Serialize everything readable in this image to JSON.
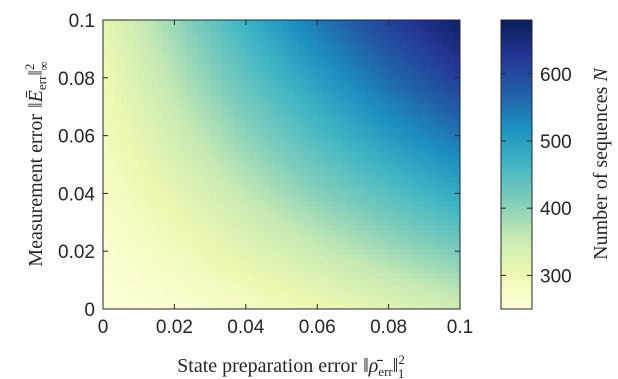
{
  "chart_data": {
    "type": "heatmap",
    "title": "",
    "xlabel": "State preparation error",
    "xlabel_math": {
      "symbol": "ρ̄",
      "subscript": "err",
      "norm_sub": "1",
      "power": "2"
    },
    "ylabel": "Measurement error",
    "ylabel_math": {
      "symbol": "Ē",
      "subscript": "err",
      "norm_sub": "∞",
      "power": "2"
    },
    "xlim": [
      0,
      0.1
    ],
    "ylim": [
      0,
      0.1
    ],
    "x_ticks": [
      "0",
      "0.02",
      "0.04",
      "0.06",
      "0.08",
      "0.1"
    ],
    "y_ticks": [
      "0",
      "0.02",
      "0.04",
      "0.06",
      "0.08",
      "0.1"
    ],
    "x": [
      0,
      0.02,
      0.04,
      0.06,
      0.08,
      0.1
    ],
    "y": [
      0,
      0.02,
      0.04,
      0.06,
      0.08,
      0.1
    ],
    "z": [
      [
        250,
        262,
        280,
        300,
        322,
        345
      ],
      [
        262,
        287,
        320,
        352,
        385,
        415
      ],
      [
        275,
        315,
        360,
        405,
        445,
        485
      ],
      [
        288,
        342,
        400,
        455,
        505,
        550
      ],
      [
        300,
        368,
        437,
        500,
        560,
        615
      ],
      [
        312,
        392,
        472,
        545,
        610,
        670
      ]
    ],
    "colorbar": {
      "label": "Number of sequences",
      "label_symbol": "N",
      "range": [
        250,
        680
      ],
      "ticks": [
        300,
        400,
        500,
        600
      ],
      "colormap": [
        "#ffffd9",
        "#edf8b1",
        "#c7e9b4",
        "#7fcdbb",
        "#41b6c4",
        "#1d91c0",
        "#225ea8",
        "#253494",
        "#081d58"
      ]
    },
    "grid": false,
    "legend": "none"
  }
}
